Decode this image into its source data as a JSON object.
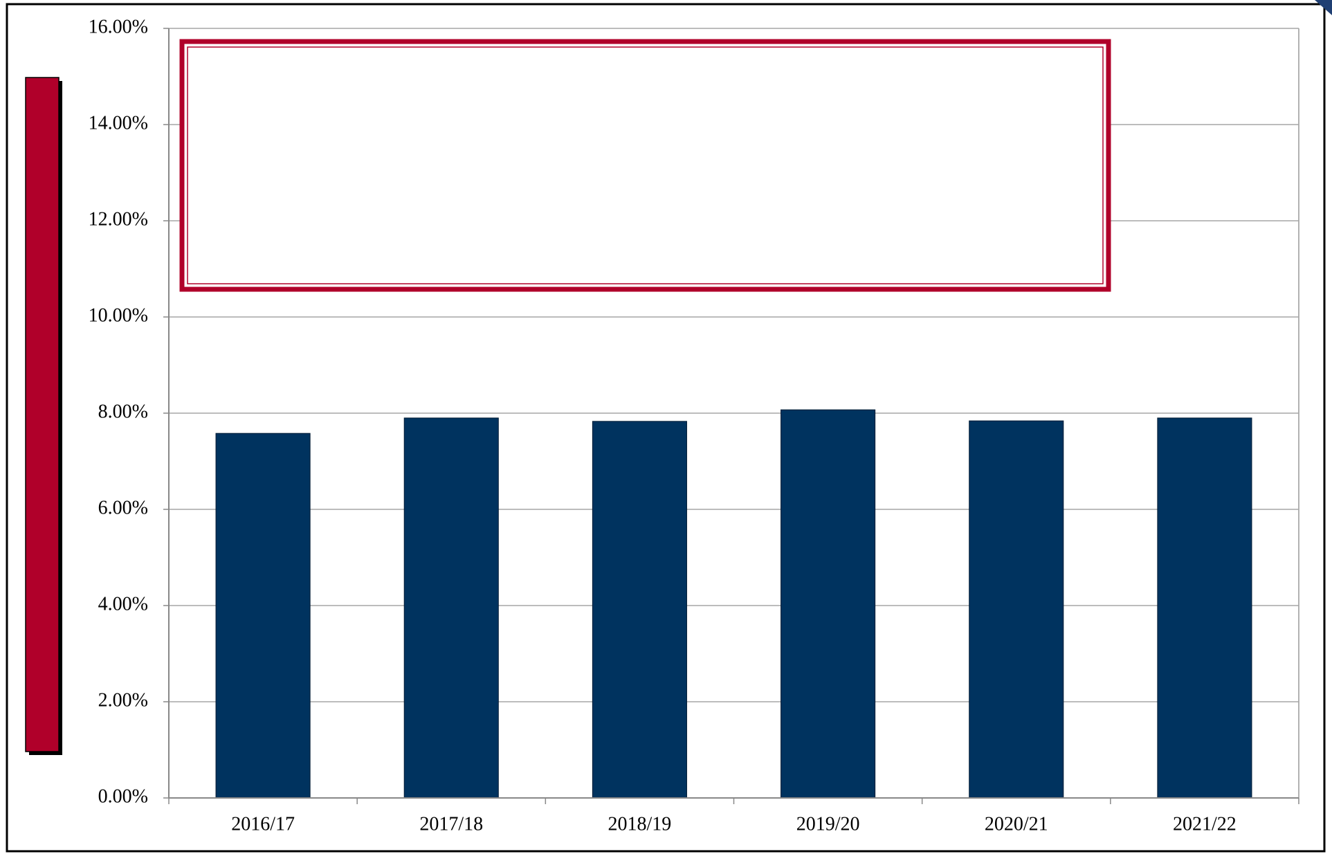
{
  "chart_data": {
    "type": "bar",
    "categories": [
      "2016/17",
      "2017/18",
      "2018/19",
      "2019/20",
      "2020/21",
      "2021/22"
    ],
    "values": [
      7.58,
      7.9,
      7.83,
      8.07,
      7.84,
      7.9
    ],
    "color": "#00335f",
    "ylim": [
      0,
      16
    ],
    "yticks": [
      {
        "value": 0,
        "label": "0.00%"
      },
      {
        "value": 2,
        "label": "2.00%"
      },
      {
        "value": 4,
        "label": "4.00%"
      },
      {
        "value": 6,
        "label": "6.00%"
      },
      {
        "value": 8,
        "label": "8.00%"
      },
      {
        "value": 10,
        "label": "10.00%"
      },
      {
        "value": 12,
        "label": "12.00%"
      },
      {
        "value": 14,
        "label": "14.00%"
      },
      {
        "value": 16,
        "label": "16.00%"
      }
    ],
    "grid": true
  }
}
